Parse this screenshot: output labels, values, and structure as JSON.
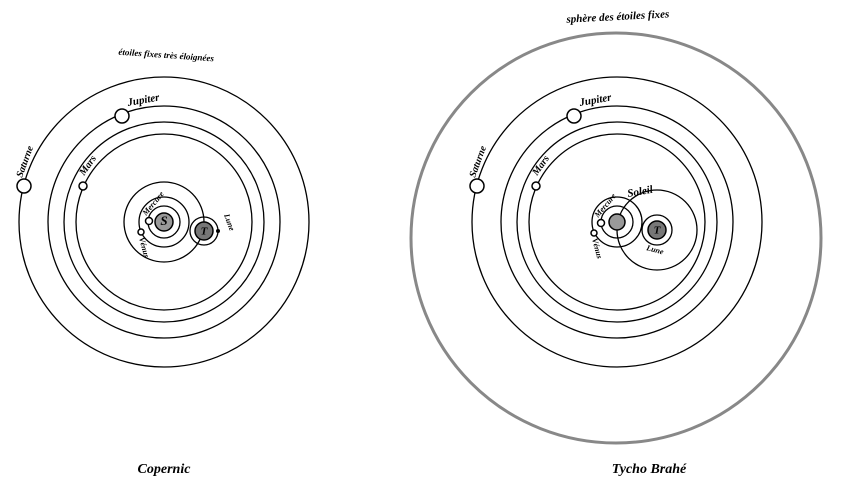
{
  "copernic": {
    "title": "Copernic",
    "sky": "étoiles fixes très éloignées",
    "saturne": "Saturne",
    "jupiter": "Jupiter",
    "mars": "Mars",
    "mercure": "Mercure",
    "venus": "Vénus",
    "lune": "Lune",
    "sun": "S",
    "earth": "T"
  },
  "tycho": {
    "title": "Tycho Brahé",
    "sky": "sphère des étoiles fixes",
    "saturne": "Saturne",
    "jupiter": "Jupiter",
    "mars": "Mars",
    "soleil": "Soleil",
    "mercure": "Mercure",
    "venus": "Vénus",
    "lune": "Lune",
    "earth": "T"
  }
}
